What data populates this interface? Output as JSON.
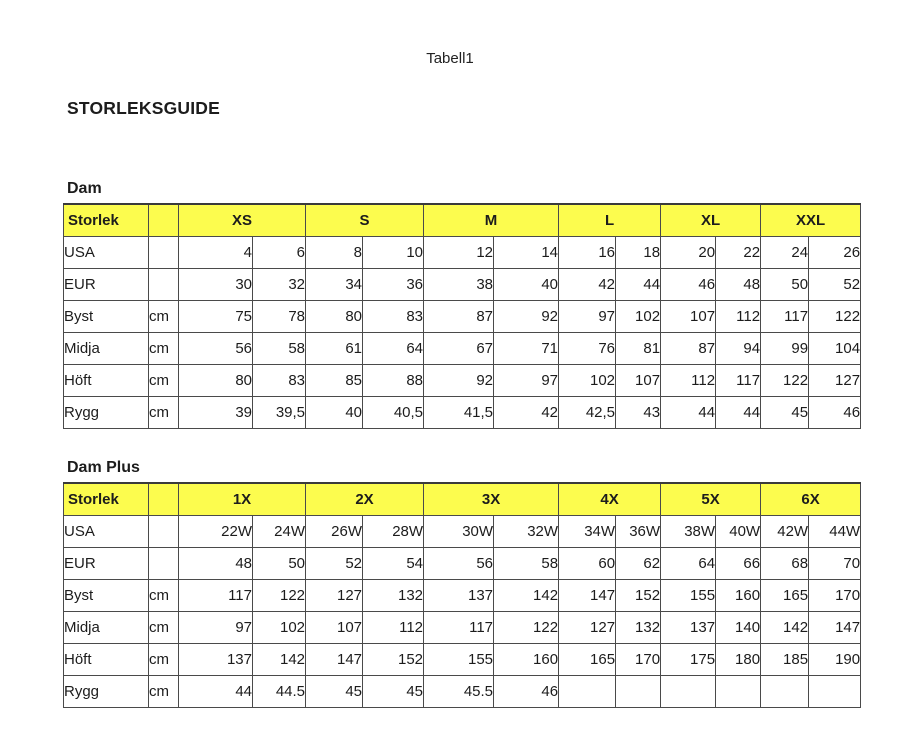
{
  "page": {
    "tab_title": "Tabell1",
    "title": "STORLEKSGUIDE"
  },
  "colors": {
    "header_bg": "#FCFC4E",
    "grid_border": "#4A4A4A",
    "text": "#1C1C1C"
  },
  "tables": [
    {
      "heading": "Dam",
      "header": {
        "label": "Storlek",
        "unit": "",
        "sizes": [
          "XS",
          "S",
          "M",
          "L",
          "XL",
          "XXL"
        ]
      },
      "rows": [
        {
          "label": "USA",
          "unit": "",
          "values": [
            "4",
            "6",
            "8",
            "10",
            "12",
            "14",
            "16",
            "18",
            "20",
            "22",
            "24",
            "26"
          ]
        },
        {
          "label": "EUR",
          "unit": "",
          "values": [
            "30",
            "32",
            "34",
            "36",
            "38",
            "40",
            "42",
            "44",
            "46",
            "48",
            "50",
            "52"
          ]
        },
        {
          "label": "Byst",
          "unit": "cm",
          "values": [
            "75",
            "78",
            "80",
            "83",
            "87",
            "92",
            "97",
            "102",
            "107",
            "112",
            "117",
            "122"
          ]
        },
        {
          "label": "Midja",
          "unit": "cm",
          "values": [
            "56",
            "58",
            "61",
            "64",
            "67",
            "71",
            "76",
            "81",
            "87",
            "94",
            "99",
            "104"
          ]
        },
        {
          "label": "Höft",
          "unit": "cm",
          "values": [
            "80",
            "83",
            "85",
            "88",
            "92",
            "97",
            "102",
            "107",
            "112",
            "117",
            "122",
            "127"
          ]
        },
        {
          "label": "Rygg",
          "unit": "cm",
          "values": [
            "39",
            "39,5",
            "40",
            "40,5",
            "41,5",
            "42",
            "42,5",
            "43",
            "44",
            "44",
            "45",
            "46"
          ]
        }
      ]
    },
    {
      "heading": "Dam Plus",
      "header": {
        "label": "Storlek",
        "unit": "",
        "sizes": [
          "1X",
          "2X",
          "3X",
          "4X",
          "5X",
          "6X"
        ]
      },
      "rows": [
        {
          "label": "USA",
          "unit": "",
          "values": [
            "22W",
            "24W",
            "26W",
            "28W",
            "30W",
            "32W",
            "34W",
            "36W",
            "38W",
            "40W",
            "42W",
            "44W"
          ]
        },
        {
          "label": "EUR",
          "unit": "",
          "values": [
            "48",
            "50",
            "52",
            "54",
            "56",
            "58",
            "60",
            "62",
            "64",
            "66",
            "68",
            "70"
          ]
        },
        {
          "label": "Byst",
          "unit": "cm",
          "values": [
            "117",
            "122",
            "127",
            "132",
            "137",
            "142",
            "147",
            "152",
            "155",
            "160",
            "165",
            "170"
          ]
        },
        {
          "label": "Midja",
          "unit": "cm",
          "values": [
            "97",
            "102",
            "107",
            "112",
            "117",
            "122",
            "127",
            "132",
            "137",
            "140",
            "142",
            "147"
          ]
        },
        {
          "label": "Höft",
          "unit": "cm",
          "values": [
            "137",
            "142",
            "147",
            "152",
            "155",
            "160",
            "165",
            "170",
            "175",
            "180",
            "185",
            "190"
          ]
        },
        {
          "label": "Rygg",
          "unit": "cm",
          "values": [
            "44",
            "44.5",
            "45",
            "45",
            "45.5",
            "46",
            "",
            "",
            "",
            "",
            "",
            ""
          ]
        }
      ]
    }
  ]
}
